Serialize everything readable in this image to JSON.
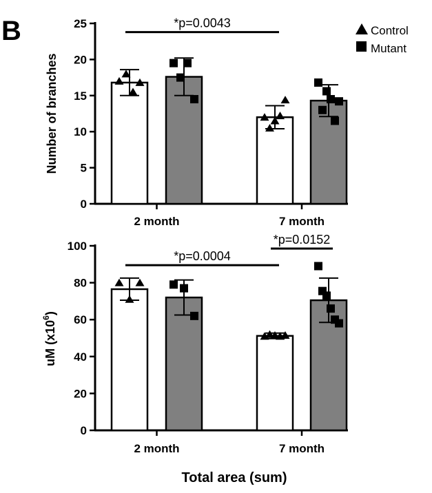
{
  "panel_label": "B",
  "x_title": "Total area (sum)",
  "colors": {
    "control_fill": "#ffffff",
    "mutant_fill": "#808080",
    "stroke": "#000000"
  },
  "legend": [
    {
      "name": "Control",
      "marker": "triangle-icon"
    },
    {
      "name": "Mutant",
      "marker": "square-icon"
    }
  ],
  "chart_data": [
    {
      "type": "bar",
      "title": "",
      "ylabel": "Number of branches",
      "xlabel": "",
      "categories": [
        "2 month",
        "7 month"
      ],
      "ylim": [
        0,
        25
      ],
      "yticks": [
        0,
        5,
        10,
        15,
        20,
        25
      ],
      "series": [
        {
          "name": "Control",
          "values": [
            16.8,
            12.0
          ],
          "sd": [
            1.8,
            1.6
          ],
          "points": [
            [
              17.0,
              18.0,
              15.5,
              16.8
            ],
            [
              12.0,
              10.5,
              11.5,
              12.2,
              14.4
            ]
          ]
        },
        {
          "name": "Mutant",
          "values": [
            17.6,
            14.3
          ],
          "sd": [
            2.6,
            2.2
          ],
          "points": [
            [
              19.5,
              17.5,
              19.5,
              14.5
            ],
            [
              16.8,
              13.0,
              15.6,
              14.5,
              11.5,
              14.2
            ]
          ]
        }
      ],
      "significance": [
        {
          "label": "*p=0.0043",
          "from": "2 month|Control",
          "to": "7 month|Control",
          "y": 23.8
        }
      ]
    },
    {
      "type": "bar",
      "title": "",
      "ylabel_main": "uM (x10",
      "ylabel_sup": "6",
      "ylabel_end": ")",
      "xlabel": "Total area (sum)",
      "categories": [
        "2 month",
        "7 month"
      ],
      "ylim": [
        0,
        100
      ],
      "yticks": [
        0,
        20,
        40,
        60,
        80,
        100
      ],
      "series": [
        {
          "name": "Control",
          "values": [
            76.5,
            51.2
          ],
          "sd": [
            6.0,
            1.5
          ],
          "points": [
            [
              80.0,
              71.0,
              80.0
            ],
            [
              51.0,
              52.0,
              51.5,
              51.0,
              51.5
            ]
          ]
        },
        {
          "name": "Mutant",
          "values": [
            72.0,
            70.5
          ],
          "sd": [
            9.5,
            12.0
          ],
          "points": [
            [
              79.0,
              77.0,
              62.0
            ],
            [
              89.0,
              75.5,
              73.0,
              66.0,
              60.0,
              58.0
            ]
          ]
        }
      ],
      "significance": [
        {
          "label": "*p=0.0004",
          "from": "2 month|Control",
          "to": "7 month|Control",
          "y": 89.5
        },
        {
          "label": "*p=0.0152",
          "from": "7 month|Control",
          "to": "7 month|Mutant",
          "y": 98.5
        }
      ]
    }
  ]
}
